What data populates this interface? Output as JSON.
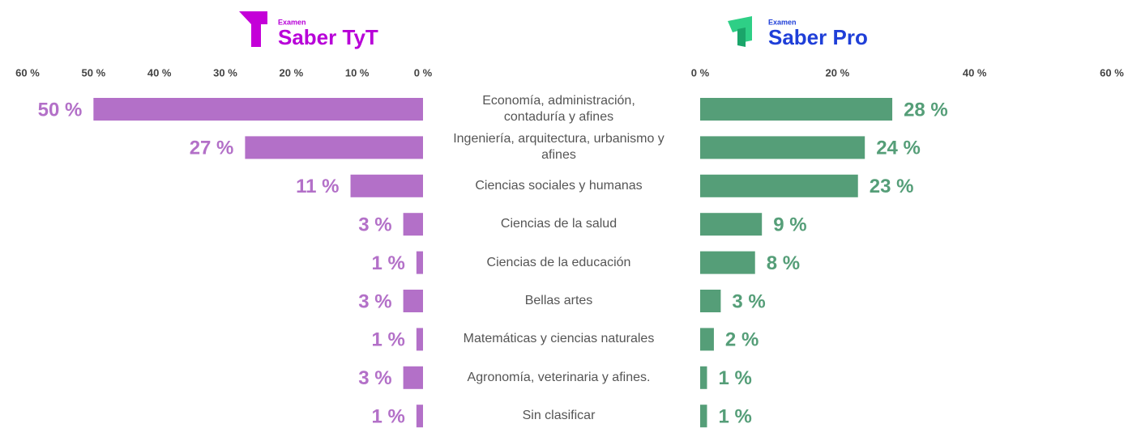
{
  "chart_data": [
    {
      "type": "bar",
      "orientation": "horizontal",
      "reversed": true,
      "subtitle": "Examen",
      "title": "Saber TyT",
      "title_color": "#b800d8",
      "categories": [
        "Economía, administración, contaduría y afines",
        "Ingeniería, arquitectura, urbanismo y afines",
        "Ciencias sociales y humanas",
        "Ciencias de la salud",
        "Ciencias de la educación",
        "Bellas artes",
        "Matemáticas y ciencias naturales",
        "Agronomía, veterinaria y afines.",
        "Sin clasificar"
      ],
      "values": [
        50,
        27,
        11,
        3,
        1,
        3,
        1,
        3,
        1
      ],
      "value_labels": [
        "50 %",
        "27 %",
        "11 %",
        "3 %",
        "1 %",
        "3 %",
        "1 %",
        "3 %",
        "1 %"
      ],
      "color": "#b370c8",
      "xlim": [
        0,
        60
      ],
      "xticks": [
        {
          "value": 60,
          "label": "60 %"
        },
        {
          "value": 50,
          "label": "50 %"
        },
        {
          "value": 40,
          "label": "40 %"
        },
        {
          "value": 30,
          "label": "30 %"
        },
        {
          "value": 20,
          "label": "20 %"
        },
        {
          "value": 10,
          "label": "10 %"
        },
        {
          "value": 0,
          "label": "0 %"
        }
      ]
    },
    {
      "type": "bar",
      "orientation": "horizontal",
      "reversed": false,
      "subtitle": "Examen",
      "title": "Saber Pro",
      "title_color": "#1f3fd8",
      "values": [
        28,
        24,
        23,
        9,
        8,
        3,
        2,
        1,
        1
      ],
      "value_labels": [
        "28 %",
        "24 %",
        "23 %",
        "9 %",
        "8 %",
        "3 %",
        "2 %",
        "1 %",
        "1 %"
      ],
      "color": "#559e78",
      "xlim": [
        0,
        60
      ],
      "xticks": [
        {
          "value": 0,
          "label": "0 %"
        },
        {
          "value": 20,
          "label": "20 %"
        },
        {
          "value": 40,
          "label": "40 %"
        },
        {
          "value": 60,
          "label": "60 %"
        }
      ]
    }
  ]
}
